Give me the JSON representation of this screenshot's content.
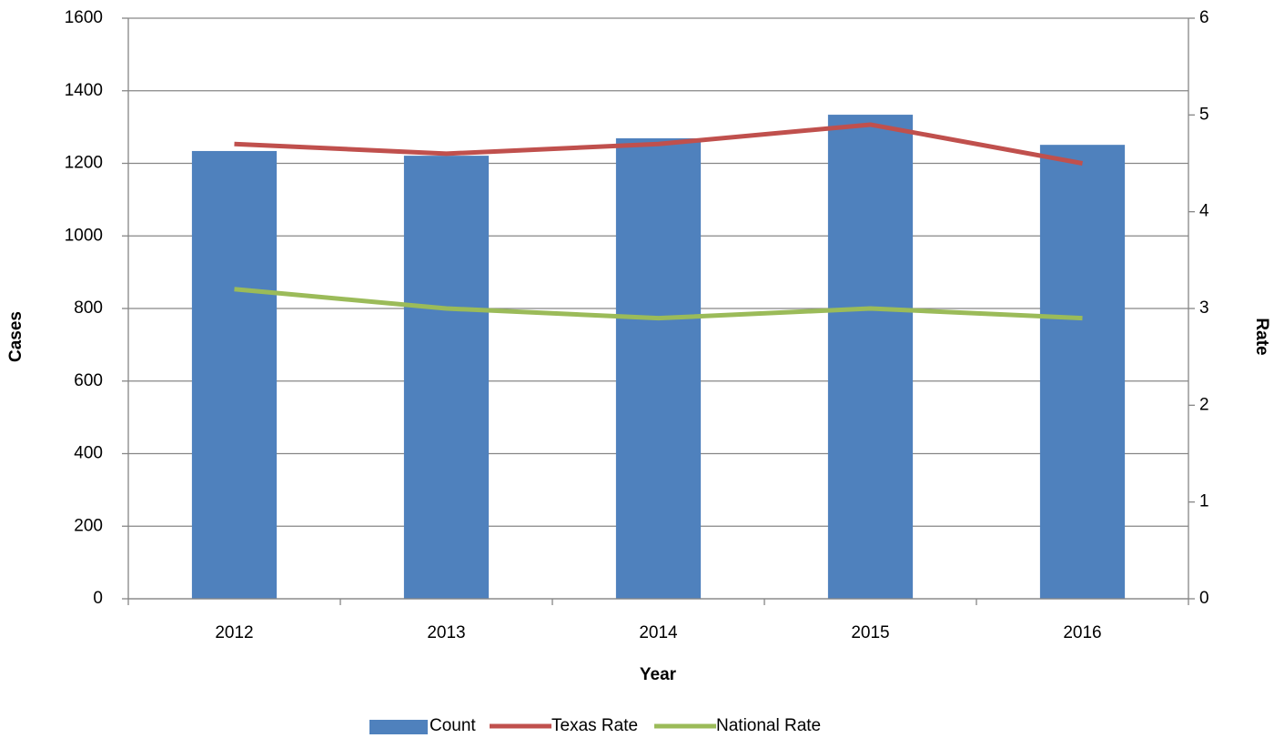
{
  "chart_data": {
    "type": "bar_line",
    "x_label": "Year",
    "y_label": "Cases",
    "y2_label": "Rate",
    "categories": [
      "2012",
      "2013",
      "2014",
      "2015",
      "2016"
    ],
    "series": [
      {
        "name": "Count",
        "type": "bar",
        "color": "#4f81bd",
        "values": [
          1234,
          1221,
          1269,
          1334,
          1251
        ]
      },
      {
        "name": "Texas Rate",
        "type": "line",
        "axis": "y2",
        "color": "#c0504d",
        "values": [
          4.7,
          4.6,
          4.7,
          4.9,
          4.5
        ]
      },
      {
        "name": "National Rate",
        "type": "line",
        "axis": "y2",
        "color": "#9bbb59",
        "values": [
          3.2,
          3.0,
          2.9,
          3.0,
          2.9
        ]
      }
    ],
    "ylim": [
      0,
      1600
    ],
    "yticks": [
      0,
      200,
      400,
      600,
      800,
      1000,
      1200,
      1400,
      1600
    ],
    "y2lim": [
      0,
      6
    ],
    "y2ticks": [
      0,
      1,
      2,
      3,
      4,
      5,
      6
    ],
    "grid": true,
    "legend": "bottom"
  }
}
